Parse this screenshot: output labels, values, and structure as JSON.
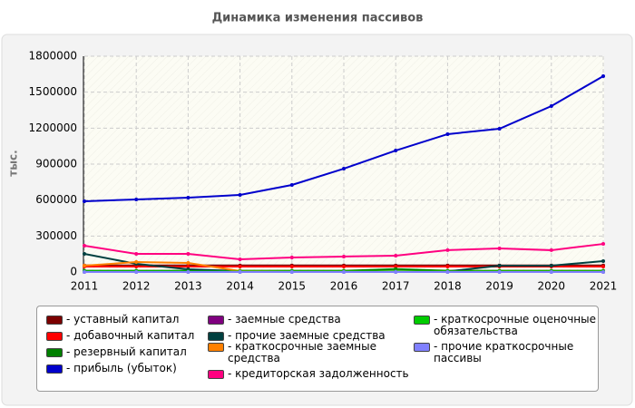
{
  "chart_data": {
    "type": "line",
    "title": "Динамика изменения пассивов",
    "y_label": "тыс.",
    "categories": [
      "2011",
      "2012",
      "2013",
      "2014",
      "2015",
      "2016",
      "2017",
      "2018",
      "2019",
      "2020",
      "2021"
    ],
    "ylim": [
      0,
      1800000
    ],
    "yticks": [
      0,
      300000,
      600000,
      900000,
      1200000,
      1500000,
      1800000
    ],
    "grid": true,
    "series": [
      {
        "name": "уставный капитал",
        "color": "#7b0000",
        "values": [
          55000,
          55000,
          55000,
          55000,
          55000,
          55000,
          55000,
          55000,
          55000,
          55000,
          55000
        ]
      },
      {
        "name": "добавочный капитал",
        "color": "#ff0000",
        "values": [
          45000,
          45000,
          45000,
          45000,
          45000,
          45000,
          45000,
          45000,
          45000,
          45000,
          45000
        ]
      },
      {
        "name": "резервный капитал",
        "color": "#008000",
        "values": [
          10000,
          10000,
          10000,
          10000,
          10000,
          10000,
          25000,
          10000,
          10000,
          10000,
          10000
        ]
      },
      {
        "name": "прибыль (убыток)",
        "color": "#0000cc",
        "values": [
          590000,
          605000,
          620000,
          643000,
          726000,
          862000,
          1013000,
          1150000,
          1195000,
          1384000,
          1634000
        ]
      },
      {
        "name": "заемные средства",
        "color": "#800080",
        "values": [
          0,
          0,
          0,
          0,
          0,
          0,
          0,
          0,
          0,
          0,
          0
        ]
      },
      {
        "name": "прочие заемные средства",
        "color": "#004040",
        "values": [
          151000,
          68000,
          23000,
          8000,
          5000,
          5000,
          5000,
          5000,
          53000,
          53000,
          91000
        ]
      },
      {
        "name": "краткосрочные заемные средства",
        "color": "#ff8000",
        "values": [
          53000,
          83000,
          76000,
          8000,
          5000,
          5000,
          5000,
          5000,
          5000,
          5000,
          5000
        ]
      },
      {
        "name": "кредиторская задолженность",
        "color": "#ff0080",
        "values": [
          219000,
          151000,
          151000,
          106000,
          121000,
          129000,
          136000,
          182000,
          197000,
          182000,
          234000
        ]
      },
      {
        "name": "краткосрочные оценочные обязательства",
        "color": "#00cc00",
        "values": [
          5000,
          5000,
          5000,
          5000,
          5000,
          5000,
          5000,
          5000,
          5000,
          5000,
          5000
        ]
      },
      {
        "name": "прочие краткосрочные пассивы",
        "color": "#8080ff",
        "values": [
          0,
          0,
          0,
          0,
          0,
          0,
          0,
          0,
          0,
          0,
          0
        ]
      }
    ]
  }
}
